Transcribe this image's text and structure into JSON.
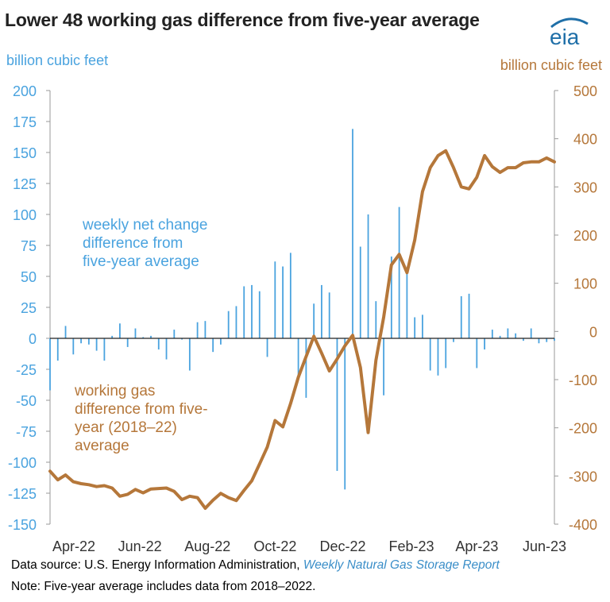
{
  "title": "Lower 48 working gas difference from five-year average",
  "logo_text": "eia",
  "footer": {
    "source_prefix": "Data source: U.S. Energy Information Administration, ",
    "source_link": "Weekly Natural Gas Storage Report",
    "note": "Note: Five-year average includes data from 2018–2022."
  },
  "colors": {
    "bars": "#4aa3df",
    "line": "#b5773a",
    "axis": "#222222",
    "logo": "#1f6fa8"
  },
  "chart_data": {
    "type": "bar+line",
    "x_ticks": [
      "Apr-22",
      "Jun-22",
      "Aug-22",
      "Oct-22",
      "Dec-22",
      "Feb-23",
      "Apr-23",
      "Jun-23"
    ],
    "x_start": "2022-04-01",
    "x_end": "2023-06-30",
    "left_axis": {
      "label": "billion cubic feet",
      "ylim": [
        -150,
        200
      ],
      "ticks": [
        200,
        175,
        150,
        125,
        100,
        75,
        50,
        25,
        0,
        -25,
        -50,
        -75,
        -100,
        -125,
        -150
      ]
    },
    "right_axis": {
      "label": "billion cubic feet",
      "ylim": [
        -400,
        500
      ],
      "ticks": [
        500,
        400,
        300,
        200,
        100,
        0,
        -100,
        -200,
        -300,
        -400
      ]
    },
    "annotations": {
      "bars": [
        "weekly net change",
        "difference from",
        "five-year average"
      ],
      "line": [
        "working gas",
        "difference from five-",
        "year (2018–22)",
        "average"
      ]
    },
    "series": [
      {
        "name": "weekly net change difference from five-year average",
        "axis": "left",
        "type": "bar",
        "dates": [
          "2022-04-01",
          "2022-04-08",
          "2022-04-15",
          "2022-04-22",
          "2022-04-29",
          "2022-05-06",
          "2022-05-13",
          "2022-05-20",
          "2022-05-27",
          "2022-06-03",
          "2022-06-10",
          "2022-06-17",
          "2022-06-24",
          "2022-07-01",
          "2022-07-08",
          "2022-07-15",
          "2022-07-22",
          "2022-07-29",
          "2022-08-05",
          "2022-08-12",
          "2022-08-19",
          "2022-08-26",
          "2022-09-02",
          "2022-09-09",
          "2022-09-16",
          "2022-09-23",
          "2022-09-30",
          "2022-10-07",
          "2022-10-14",
          "2022-10-21",
          "2022-10-28",
          "2022-11-04",
          "2022-11-11",
          "2022-11-18",
          "2022-11-25",
          "2022-12-02",
          "2022-12-09",
          "2022-12-16",
          "2022-12-23",
          "2022-12-30",
          "2023-01-06",
          "2023-01-13",
          "2023-01-20",
          "2023-01-27",
          "2023-02-03",
          "2023-02-10",
          "2023-02-17",
          "2023-02-24",
          "2023-03-03",
          "2023-03-10",
          "2023-03-17",
          "2023-03-24",
          "2023-03-31",
          "2023-04-07",
          "2023-04-14",
          "2023-04-21",
          "2023-04-28",
          "2023-05-05",
          "2023-05-12",
          "2023-05-19",
          "2023-05-26",
          "2023-06-02",
          "2023-06-09",
          "2023-06-16",
          "2023-06-23",
          "2023-06-30"
        ],
        "values": [
          -42,
          -18,
          10,
          -13,
          -4,
          -5,
          -10,
          -18,
          2,
          12,
          -7,
          8,
          1,
          2,
          -9,
          -17,
          7,
          -1,
          -26,
          13,
          14,
          -11,
          -5,
          22,
          26,
          42,
          43,
          38,
          -15,
          62,
          58,
          69,
          -32,
          -48,
          28,
          43,
          37,
          -107,
          -122,
          169,
          74,
          100,
          30,
          -46,
          66,
          106,
          53,
          17,
          19,
          -26,
          -30,
          -24,
          -3,
          34,
          36,
          -24,
          -9,
          7,
          2,
          8,
          4,
          -2,
          8,
          -4,
          -3,
          -2
        ],
        "value_note": ""
      },
      {
        "name": "working gas difference from five-year (2018–22) average",
        "axis": "right",
        "type": "line",
        "dates": [
          "2022-04-01",
          "2022-04-08",
          "2022-04-15",
          "2022-04-22",
          "2022-04-29",
          "2022-05-06",
          "2022-05-13",
          "2022-05-20",
          "2022-05-27",
          "2022-06-03",
          "2022-06-10",
          "2022-06-17",
          "2022-06-24",
          "2022-07-01",
          "2022-07-08",
          "2022-07-15",
          "2022-07-22",
          "2022-07-29",
          "2022-08-05",
          "2022-08-12",
          "2022-08-19",
          "2022-08-26",
          "2022-09-02",
          "2022-09-09",
          "2022-09-16",
          "2022-09-23",
          "2022-09-30",
          "2022-10-07",
          "2022-10-14",
          "2022-10-21",
          "2022-10-28",
          "2022-11-04",
          "2022-11-11",
          "2022-11-18",
          "2022-11-25",
          "2022-12-02",
          "2022-12-09",
          "2022-12-16",
          "2022-12-23",
          "2022-12-30",
          "2023-01-06",
          "2023-01-13",
          "2023-01-20",
          "2023-01-27",
          "2023-02-03",
          "2023-02-10",
          "2023-02-17",
          "2023-02-24",
          "2023-03-03",
          "2023-03-10",
          "2023-03-17",
          "2023-03-24",
          "2023-03-31",
          "2023-04-07",
          "2023-04-14",
          "2023-04-21",
          "2023-04-28",
          "2023-05-05",
          "2023-05-12",
          "2023-05-19",
          "2023-05-26",
          "2023-06-02",
          "2023-06-09",
          "2023-06-16",
          "2023-06-23",
          "2023-06-30"
        ],
        "values": [
          -290,
          -308,
          -298,
          -312,
          -316,
          -318,
          -322,
          -320,
          -325,
          -342,
          -338,
          -328,
          -335,
          -327,
          -326,
          -325,
          -332,
          -349,
          -342,
          -345,
          -367,
          -350,
          -336,
          -345,
          -351,
          -330,
          -310,
          -275,
          -240,
          -185,
          -198,
          -150,
          -95,
          -52,
          -10,
          -45,
          -82,
          -57,
          -30,
          -8,
          -75,
          -210,
          -60,
          30,
          138,
          160,
          122,
          190,
          290,
          340,
          365,
          375,
          340,
          300,
          296,
          320,
          365,
          342,
          330,
          340,
          340,
          350,
          352,
          352,
          360,
          352
        ]
      }
    ]
  }
}
